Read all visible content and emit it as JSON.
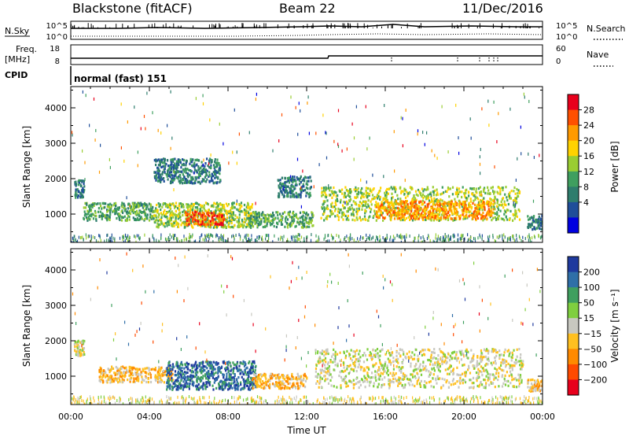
{
  "header": {
    "station": "Blackstone (fitACF)",
    "beam": "Beam 22",
    "date": "11/Dec/2016"
  },
  "strip_labels": {
    "nsky": "N.Sky",
    "freq": "Freq.",
    "freq_unit": "[MHz]",
    "cpid": "CPID",
    "nsearch": "N.Search",
    "nave": "Nave",
    "nsky_ticks": [
      "10^5",
      "10^0"
    ],
    "freq_ticks": [
      "18",
      "8"
    ],
    "nave_ticks": [
      "60",
      "0"
    ],
    "cpid_text": "normal (fast) 151"
  },
  "chart_data": [
    {
      "type": "heatmap",
      "panel": "power",
      "xlabel": "",
      "ylabel": "Slant Range [km]",
      "xlim": [
        0,
        24
      ],
      "ylim": [
        200,
        4600
      ],
      "y_ticks": [
        1000,
        2000,
        3000,
        4000
      ],
      "colorbar": {
        "label": "Power [dB]",
        "ticks": [
          "28",
          "24",
          "20",
          "16",
          "12",
          "8",
          "4"
        ],
        "colors": [
          "#e8001c",
          "#ff5000",
          "#ff9a00",
          "#ffd200",
          "#9acd32",
          "#3f9f5f",
          "#2e7d6d",
          "#1f4e9a",
          "#0000e0"
        ]
      },
      "regions": [
        {
          "t0": 0.15,
          "t1": 0.65,
          "r0": 1500,
          "r1": 2000,
          "level": 2
        },
        {
          "t0": 0.6,
          "t1": 4.2,
          "r0": 850,
          "r1": 1350,
          "level": 3
        },
        {
          "t0": 4.2,
          "t1": 9.2,
          "r0": 650,
          "r1": 1350,
          "level": 4
        },
        {
          "t0": 5.8,
          "t1": 7.8,
          "r0": 720,
          "r1": 1100,
          "level": 7
        },
        {
          "t0": 9.0,
          "t1": 12.3,
          "r0": 650,
          "r1": 1100,
          "level": 3
        },
        {
          "t0": 4.2,
          "t1": 7.6,
          "r0": 1900,
          "r1": 2600,
          "level": 2
        },
        {
          "t0": 10.5,
          "t1": 12.2,
          "r0": 1500,
          "r1": 2100,
          "level": 2
        },
        {
          "t0": 12.7,
          "t1": 22.8,
          "r0": 850,
          "r1": 1800,
          "level": 4
        },
        {
          "t0": 15.5,
          "t1": 21.5,
          "r0": 900,
          "r1": 1400,
          "level": 6
        },
        {
          "t0": 23.2,
          "t1": 24,
          "r0": 600,
          "r1": 1000,
          "level": 2
        }
      ]
    },
    {
      "type": "heatmap",
      "panel": "velocity",
      "xlabel": "Time UT",
      "ylabel": "Slant Range [km]",
      "xlim": [
        0,
        24
      ],
      "ylim": [
        200,
        4600
      ],
      "x_ticks": [
        "00:00",
        "04:00",
        "08:00",
        "12:00",
        "16:00",
        "20:00",
        "00:00"
      ],
      "y_ticks": [
        1000,
        2000,
        3000,
        4000
      ],
      "colorbar": {
        "label": "Velocity [m s⁻¹]",
        "ticks": [
          "200",
          "100",
          "50",
          "15",
          "−15",
          "−50",
          "−100",
          "−200"
        ],
        "colors": [
          "#1f3a9e",
          "#2f6fa8",
          "#3f9f5f",
          "#7fcf3f",
          "#c8c8c0",
          "#ffc020",
          "#ff8a00",
          "#ff4a00",
          "#e8001c"
        ]
      },
      "regions": [
        {
          "t0": 0.15,
          "t1": 0.65,
          "r0": 1600,
          "r1": 2050,
          "level": 4
        },
        {
          "t0": 1.4,
          "t1": 5.2,
          "r0": 850,
          "r1": 1300,
          "level": 3
        },
        {
          "t0": 4.8,
          "t1": 9.4,
          "r0": 650,
          "r1": 1450,
          "level": 7
        },
        {
          "t0": 9.2,
          "t1": 12.0,
          "r0": 680,
          "r1": 1100,
          "level": 3
        },
        {
          "t0": 12.4,
          "t1": 23.0,
          "r0": 700,
          "r1": 1800,
          "level": 4
        },
        {
          "t0": 23.2,
          "t1": 24,
          "r0": 600,
          "r1": 950,
          "level": 3
        }
      ]
    }
  ]
}
